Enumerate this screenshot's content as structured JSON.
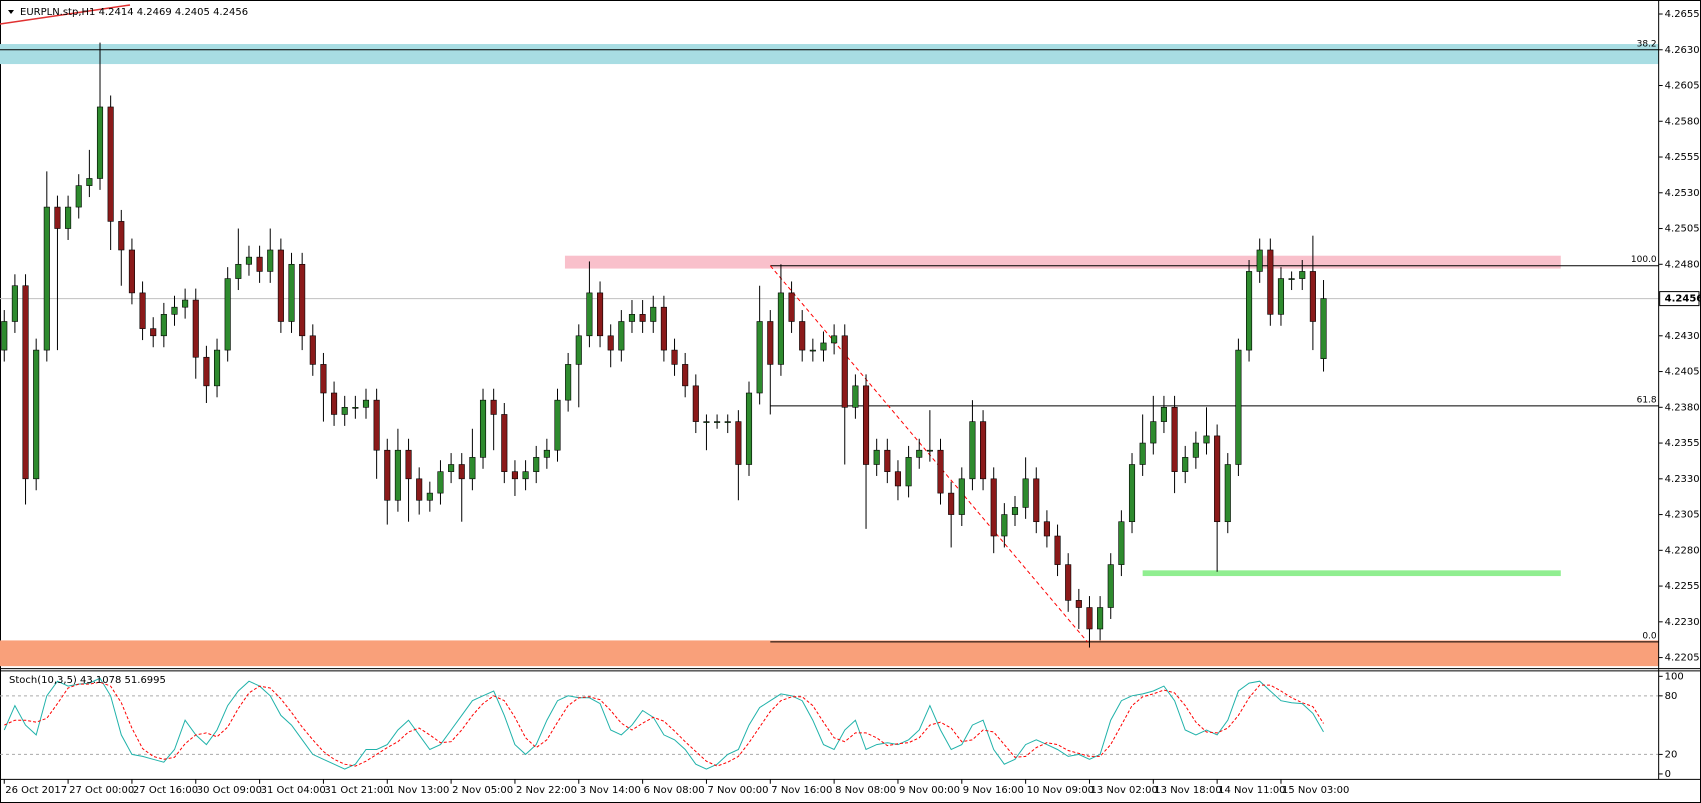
{
  "chart_data": [
    {
      "type": "candlestick",
      "title": "EURPLN.stp,H1  4.2414 4.2469 4.2405 4.2456",
      "categories": [
        "26 Oct 2017",
        null,
        null,
        null,
        null,
        null,
        "27 Oct 00:00",
        null,
        null,
        null,
        null,
        null,
        "27 Oct 16:00",
        null,
        null,
        null,
        null,
        null,
        "30 Oct 09:00",
        null,
        null,
        null,
        null,
        null,
        "31 Oct 04:00",
        null,
        null,
        null,
        null,
        null,
        "31 Oct 21:00",
        null,
        null,
        null,
        null,
        null,
        "1 Nov 13:00",
        null,
        null,
        null,
        null,
        null,
        "2 Nov 05:00",
        null,
        null,
        null,
        null,
        null,
        "2 Nov 22:00",
        null,
        null,
        null,
        null,
        null,
        "3 Nov 14:00",
        null,
        null,
        null,
        null,
        null,
        "6 Nov 08:00",
        null,
        null,
        null,
        null,
        null,
        "7 Nov 00:00",
        null,
        null,
        null,
        null,
        null,
        "7 Nov 16:00",
        null,
        null,
        null,
        null,
        null,
        "8 Nov 08:00",
        null,
        null,
        null,
        null,
        null,
        "9 Nov 00:00",
        null,
        null,
        null,
        null,
        null,
        "9 Nov 16:00",
        null,
        null,
        null,
        null,
        null,
        "10 Nov 09:00",
        null,
        null,
        null,
        null,
        null,
        "13 Nov 02:00",
        null,
        null,
        null,
        null,
        null,
        "13 Nov 18:00",
        null,
        null,
        null,
        null,
        null,
        "14 Nov 11:00",
        null,
        null,
        null,
        null,
        null,
        "15 Nov 03:00",
        null,
        null,
        null,
        null
      ],
      "xlim": [
        -0.4,
        155.5
      ],
      "open": [
        4.242,
        4.244,
        4.2465,
        4.233,
        4.242,
        4.252,
        4.2505,
        4.252,
        4.2535,
        4.254,
        4.259,
        4.251,
        4.249,
        4.246,
        4.2435,
        4.243,
        4.2445,
        4.245,
        4.2455,
        4.2415,
        4.2395,
        4.242,
        4.247,
        4.248,
        4.2485,
        4.2475,
        4.249,
        4.244,
        4.248,
        4.243,
        4.241,
        4.239,
        4.2375,
        4.238,
        4.238,
        4.2385,
        4.235,
        4.2315,
        4.235,
        4.233,
        4.2315,
        4.232,
        4.2335,
        4.234,
        4.233,
        4.2345,
        4.2385,
        4.2375,
        4.2335,
        4.233,
        4.2335,
        4.2345,
        4.235,
        4.2385,
        4.241,
        4.243,
        4.246,
        4.243,
        4.242,
        4.244,
        4.2445,
        4.244,
        4.245,
        4.242,
        4.241,
        4.2395,
        4.237,
        4.237,
        4.237,
        4.237,
        4.234,
        4.239,
        4.244,
        4.241,
        4.246,
        4.244,
        4.242,
        4.242,
        4.2425,
        4.243,
        4.238,
        4.2395,
        4.234,
        4.235,
        4.2335,
        4.2325,
        4.2345,
        4.235,
        4.235,
        4.232,
        4.2305,
        4.233,
        4.237,
        4.233,
        4.229,
        4.2305,
        4.231,
        4.233,
        4.23,
        4.229,
        4.227,
        4.2245,
        4.224,
        4.2225,
        4.224,
        4.227,
        4.23,
        4.234,
        4.2355,
        4.237,
        4.238,
        4.2335,
        4.2345,
        4.2355,
        4.236,
        4.23,
        4.234,
        4.242,
        4.2475,
        4.249,
        4.2445,
        4.247,
        4.247,
        4.2475,
        4.2414
      ],
      "high": [
        4.2448,
        4.2473,
        4.2473,
        4.2428,
        4.2545,
        4.2528,
        4.2528,
        4.2543,
        4.256,
        4.2635,
        4.2598,
        4.2518,
        4.2498,
        4.2468,
        4.2443,
        4.2453,
        4.2458,
        4.2463,
        4.2463,
        4.2423,
        4.2428,
        4.2478,
        4.2505,
        4.2493,
        4.2493,
        4.2505,
        4.2498,
        4.2488,
        4.2488,
        4.2438,
        4.2418,
        4.2398,
        4.2388,
        4.2388,
        4.2393,
        4.2393,
        4.2358,
        4.2365,
        4.2358,
        4.2338,
        4.2328,
        4.2343,
        4.2348,
        4.2348,
        4.2365,
        4.2393,
        4.2393,
        4.2383,
        4.2343,
        4.2343,
        4.2353,
        4.2358,
        4.2393,
        4.2418,
        4.2438,
        4.2482,
        4.2468,
        4.2438,
        4.2448,
        4.2455,
        4.2455,
        4.2458,
        4.2458,
        4.2428,
        4.2418,
        4.2403,
        4.2375,
        4.2375,
        4.2375,
        4.2378,
        4.2398,
        4.2465,
        4.2448,
        4.248,
        4.2468,
        4.2448,
        4.2428,
        4.2433,
        4.2438,
        4.2438,
        4.2403,
        4.2403,
        4.2358,
        4.2358,
        4.2343,
        4.2353,
        4.2358,
        4.2378,
        4.2358,
        4.2328,
        4.2338,
        4.2385,
        4.2378,
        4.2338,
        4.2313,
        4.2318,
        4.2345,
        4.2338,
        4.2308,
        4.2298,
        4.2278,
        4.2253,
        4.2248,
        4.2248,
        4.2278,
        4.2308,
        4.2348,
        4.2375,
        4.2388,
        4.2388,
        4.2388,
        4.2353,
        4.2363,
        4.238,
        4.2368,
        4.2348,
        4.2428,
        4.2483,
        4.2498,
        4.2498,
        4.2478,
        4.2475,
        4.2483,
        4.25,
        4.2469
      ],
      "low": [
        4.2412,
        4.2432,
        4.2312,
        4.2322,
        4.2412,
        4.242,
        4.2497,
        4.2512,
        4.2527,
        4.2532,
        4.249,
        4.2465,
        4.2452,
        4.2427,
        4.2422,
        4.2422,
        4.2437,
        4.2442,
        4.24,
        4.2383,
        4.2387,
        4.2412,
        4.2462,
        4.2472,
        4.2467,
        4.2467,
        4.2432,
        4.2432,
        4.242,
        4.2402,
        4.237,
        4.2367,
        4.2367,
        4.2372,
        4.2372,
        4.233,
        4.2298,
        4.2307,
        4.23,
        4.2305,
        4.2307,
        4.2312,
        4.2327,
        4.23,
        4.2322,
        4.2337,
        4.235,
        4.2327,
        4.2318,
        4.2322,
        4.2327,
        4.2337,
        4.2342,
        4.2377,
        4.238,
        4.2422,
        4.2422,
        4.2408,
        4.2412,
        4.2432,
        4.2432,
        4.2432,
        4.2412,
        4.2402,
        4.2387,
        4.2362,
        4.235,
        4.2365,
        4.2362,
        4.2315,
        4.2332,
        4.2382,
        4.2375,
        4.2402,
        4.2432,
        4.2412,
        4.2412,
        4.2412,
        4.2417,
        4.234,
        4.2372,
        4.2295,
        4.2332,
        4.2327,
        4.2315,
        4.2317,
        4.2337,
        4.2342,
        4.2312,
        4.2282,
        4.2297,
        4.2322,
        4.2322,
        4.2278,
        4.2282,
        4.2297,
        4.2302,
        4.2292,
        4.2282,
        4.2262,
        4.2237,
        4.2225,
        4.2212,
        4.2217,
        4.2232,
        4.2262,
        4.2292,
        4.2332,
        4.2347,
        4.2362,
        4.232,
        4.2327,
        4.2337,
        4.2347,
        4.2265,
        4.2292,
        4.2332,
        4.2412,
        4.2467,
        4.2437,
        4.2437,
        4.2462,
        4.2462,
        4.242,
        4.2405
      ],
      "close": [
        4.244,
        4.2465,
        4.233,
        4.242,
        4.252,
        4.2505,
        4.252,
        4.2535,
        4.254,
        4.259,
        4.251,
        4.249,
        4.246,
        4.2435,
        4.243,
        4.2445,
        4.245,
        4.2455,
        4.2415,
        4.2395,
        4.242,
        4.247,
        4.248,
        4.2485,
        4.2475,
        4.249,
        4.244,
        4.248,
        4.243,
        4.241,
        4.239,
        4.2375,
        4.238,
        4.238,
        4.2385,
        4.235,
        4.2315,
        4.235,
        4.233,
        4.2315,
        4.232,
        4.2335,
        4.234,
        4.233,
        4.2345,
        4.2385,
        4.2375,
        4.2335,
        4.233,
        4.2335,
        4.2345,
        4.235,
        4.2385,
        4.241,
        4.243,
        4.246,
        4.243,
        4.242,
        4.244,
        4.2445,
        4.244,
        4.245,
        4.242,
        4.241,
        4.2395,
        4.237,
        4.237,
        4.237,
        4.237,
        4.234,
        4.239,
        4.244,
        4.241,
        4.246,
        4.244,
        4.242,
        4.242,
        4.2425,
        4.243,
        4.238,
        4.2395,
        4.234,
        4.235,
        4.2335,
        4.2325,
        4.2345,
        4.235,
        4.235,
        4.232,
        4.2305,
        4.233,
        4.237,
        4.233,
        4.229,
        4.2305,
        4.231,
        4.233,
        4.23,
        4.229,
        4.227,
        4.2245,
        4.224,
        4.2225,
        4.224,
        4.227,
        4.23,
        4.234,
        4.2355,
        4.237,
        4.238,
        4.2335,
        4.2345,
        4.2355,
        4.236,
        4.23,
        4.234,
        4.242,
        4.2475,
        4.249,
        4.2445,
        4.247,
        4.247,
        4.2475,
        4.244,
        4.2456
      ],
      "up_color": "#2e8b2e",
      "down_color": "#8b1a1a",
      "ylim": [
        4.2198,
        4.2661
      ],
      "yticks": [
        4.2205,
        {
          "value": 4.223,
          "label": "4.2230"
        },
        4.2255,
        {
          "value": 4.228,
          "label": "4.2280"
        },
        4.2305,
        {
          "value": 4.233,
          "label": "4.2330"
        },
        4.2355,
        {
          "value": 4.238,
          "label": "4.2380"
        },
        4.2405,
        {
          "value": 4.243,
          "label": "4.2430"
        },
        {
          "value": 4.248,
          "label": "4.2480"
        },
        4.2505,
        {
          "value": 4.253,
          "label": "4.2530"
        },
        4.2555,
        {
          "value": 4.258,
          "label": "4.2580"
        },
        4.2605,
        {
          "value": 4.263,
          "label": "4.2630"
        },
        4.2655
      ],
      "current_price_line": true,
      "zones": [
        {
          "from": -0.4,
          "to": 155.5,
          "low": 4.262,
          "high": 4.2634,
          "color": "#a8dde3"
        },
        {
          "from": 52.7,
          "to": 146.3,
          "low": 4.2477,
          "high": 4.2486,
          "color": "#f9c0cb"
        },
        {
          "from": 107,
          "to": 146.3,
          "low": 4.2262,
          "high": 4.2266,
          "color": "#90ee90"
        },
        {
          "from": -0.4,
          "to": 155.5,
          "low": 4.2199,
          "high": 4.2217,
          "color": "#f9a07a"
        }
      ],
      "fib_levels": [
        {
          "label": "38.2",
          "price": 4.263,
          "from": -0.4
        },
        {
          "label": "100.0",
          "price": 4.2479,
          "from": 72
        },
        {
          "label": "61.8",
          "price": 4.2381,
          "from": 72
        },
        {
          "label": "0.0",
          "price": 4.2216,
          "from": 72
        }
      ],
      "trend_line": {
        "x": [
          72,
          101.8
        ],
        "y": [
          4.2479,
          4.2216
        ],
        "color": "#ff0000"
      }
    },
    {
      "type": "line",
      "title": "Stoch(10,3,5) 43.1078 51.6995",
      "xlim": [
        -0.4,
        155.5
      ],
      "ylim": [
        -5.6,
        105.6
      ],
      "yticks": [
        100,
        80,
        20,
        0
      ],
      "series": [
        {
          "color": "#20b2aa",
          "dashed": false,
          "values": [
            45,
            70,
            50,
            40,
            80,
            95,
            90,
            92,
            93,
            98,
            80,
            40,
            20,
            18,
            15,
            12,
            25,
            55,
            40,
            30,
            45,
            70,
            85,
            95,
            90,
            80,
            60,
            50,
            35,
            20,
            15,
            10,
            5,
            10,
            25,
            25,
            30,
            45,
            55,
            40,
            25,
            30,
            45,
            60,
            75,
            80,
            85,
            60,
            30,
            20,
            30,
            55,
            75,
            80,
            78,
            78,
            72,
            45,
            40,
            50,
            65,
            58,
            40,
            35,
            25,
            10,
            5,
            10,
            20,
            25,
            50,
            68,
            75,
            82,
            80,
            75,
            55,
            30,
            25,
            45,
            55,
            25,
            30,
            32,
            30,
            35,
            45,
            70,
            45,
            25,
            30,
            50,
            55,
            25,
            10,
            15,
            30,
            35,
            30,
            25,
            18,
            20,
            15,
            20,
            55,
            75,
            80,
            82,
            85,
            90,
            75,
            45,
            40,
            45,
            40,
            55,
            85,
            93,
            95,
            85,
            75,
            73,
            72,
            62,
            43.1078
          ]
        },
        {
          "color": "#ff0000",
          "dashed": true,
          "values": [
            50,
            55,
            55,
            53,
            57,
            72,
            88,
            92,
            92,
            94,
            90,
            73,
            47,
            26,
            18,
            15,
            17,
            31,
            40,
            42,
            38,
            48,
            67,
            83,
            90,
            88,
            77,
            63,
            48,
            35,
            23,
            15,
            10,
            8,
            13,
            20,
            27,
            33,
            43,
            47,
            40,
            32,
            33,
            45,
            60,
            72,
            80,
            75,
            58,
            37,
            27,
            35,
            53,
            70,
            78,
            79,
            76,
            65,
            52,
            45,
            52,
            58,
            54,
            44,
            33,
            23,
            13,
            8,
            12,
            18,
            32,
            48,
            64,
            75,
            79,
            79,
            70,
            53,
            37,
            33,
            42,
            42,
            37,
            29,
            31,
            32,
            37,
            50,
            53,
            47,
            33,
            35,
            45,
            43,
            30,
            17,
            18,
            27,
            32,
            30,
            24,
            21,
            18,
            18,
            30,
            50,
            70,
            79,
            82,
            86,
            83,
            70,
            53,
            43,
            42,
            47,
            60,
            78,
            91,
            91,
            85,
            78,
            73,
            69,
            51.6995
          ]
        }
      ]
    }
  ]
}
